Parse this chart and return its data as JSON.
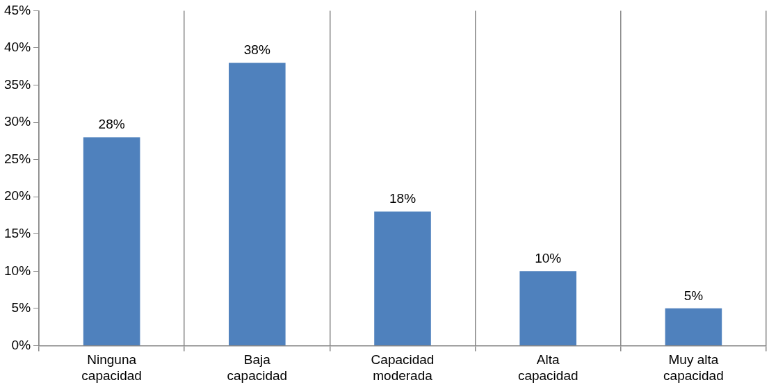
{
  "chart_data": {
    "type": "bar",
    "categories": [
      "Ninguna capacidad",
      "Baja capacidad",
      "Capacidad moderada",
      "Alta capacidad",
      "Muy alta capacidad"
    ],
    "values": [
      28,
      38,
      18,
      10,
      5
    ],
    "value_labels": [
      "28%",
      "38%",
      "18%",
      "10%",
      "5%"
    ],
    "color": "#4f81bd",
    "ylim": [
      0,
      45
    ],
    "yticks": [
      {
        "value": 0,
        "label": "0%"
      },
      {
        "value": 5,
        "label": "5%"
      },
      {
        "value": 10,
        "label": "10%"
      },
      {
        "value": 15,
        "label": "15%"
      },
      {
        "value": 20,
        "label": "20%"
      },
      {
        "value": 25,
        "label": "25%"
      },
      {
        "value": 30,
        "label": "30%"
      },
      {
        "value": 35,
        "label": "35%"
      },
      {
        "value": 40,
        "label": "40%"
      },
      {
        "value": 45,
        "label": "45%"
      }
    ],
    "grid": "x"
  }
}
